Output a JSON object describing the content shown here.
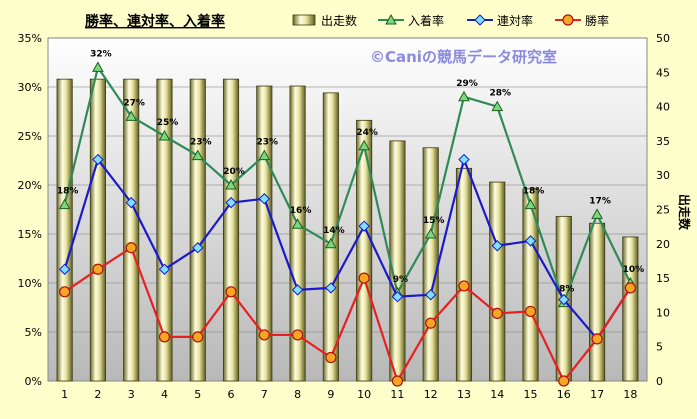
{
  "chart_data": {
    "type": "bar",
    "title": "勝率、連対率、入着率",
    "watermark": "©Caniの競馬データ研究室",
    "categories": [
      "1",
      "2",
      "3",
      "4",
      "5",
      "6",
      "7",
      "8",
      "9",
      "10",
      "11",
      "12",
      "13",
      "14",
      "15",
      "16",
      "17",
      "18"
    ],
    "series": [
      {
        "name": "出走数",
        "type": "bar",
        "axis": "right",
        "color": "#d8d48a",
        "values": [
          44,
          44,
          44,
          44,
          44,
          44,
          43,
          43,
          42,
          38,
          35,
          34,
          31,
          29,
          28,
          24,
          23,
          21
        ]
      },
      {
        "name": "入着率",
        "type": "line",
        "axis": "left",
        "color": "#2e8b57",
        "marker": "triangle",
        "values": [
          18,
          32,
          27,
          25,
          23,
          20,
          23,
          16,
          14,
          24,
          9,
          15,
          29,
          28,
          18,
          8,
          17,
          10
        ]
      },
      {
        "name": "連対率",
        "type": "line",
        "axis": "left",
        "color": "#1a1acc",
        "marker": "diamond",
        "values": [
          11.4,
          22.6,
          18.2,
          11.4,
          13.6,
          18.2,
          18.6,
          9.3,
          9.5,
          15.8,
          8.6,
          8.8,
          22.6,
          13.8,
          14.3,
          8.3,
          4.3,
          9.5
        ]
      },
      {
        "name": "勝率",
        "type": "line",
        "axis": "left",
        "color": "#e82020",
        "marker": "circle",
        "values": [
          9.1,
          11.4,
          13.6,
          4.5,
          4.5,
          9.1,
          4.7,
          4.7,
          2.4,
          10.5,
          0,
          5.9,
          9.7,
          6.9,
          7.1,
          0,
          4.3,
          9.5
        ]
      }
    ],
    "data_labels": {
      "series": "入着率",
      "labels": [
        "18%",
        "32%",
        "27%",
        "25%",
        "23%",
        "20%",
        "23%",
        "16%",
        "14%",
        "24%",
        "9%",
        "15%",
        "29%",
        "28%",
        "18%",
        "8%",
        "17%",
        "10%"
      ]
    },
    "yleft": {
      "ticks": [
        "0%",
        "5%",
        "10%",
        "15%",
        "20%",
        "25%",
        "30%",
        "35%"
      ],
      "min": 0,
      "max": 35
    },
    "yright": {
      "label": "出走数",
      "ticks": [
        "0",
        "5",
        "10",
        "15",
        "20",
        "25",
        "30",
        "35",
        "40",
        "45",
        "50"
      ],
      "min": 0,
      "max": 50
    },
    "legend_position": "top",
    "grid": true
  }
}
